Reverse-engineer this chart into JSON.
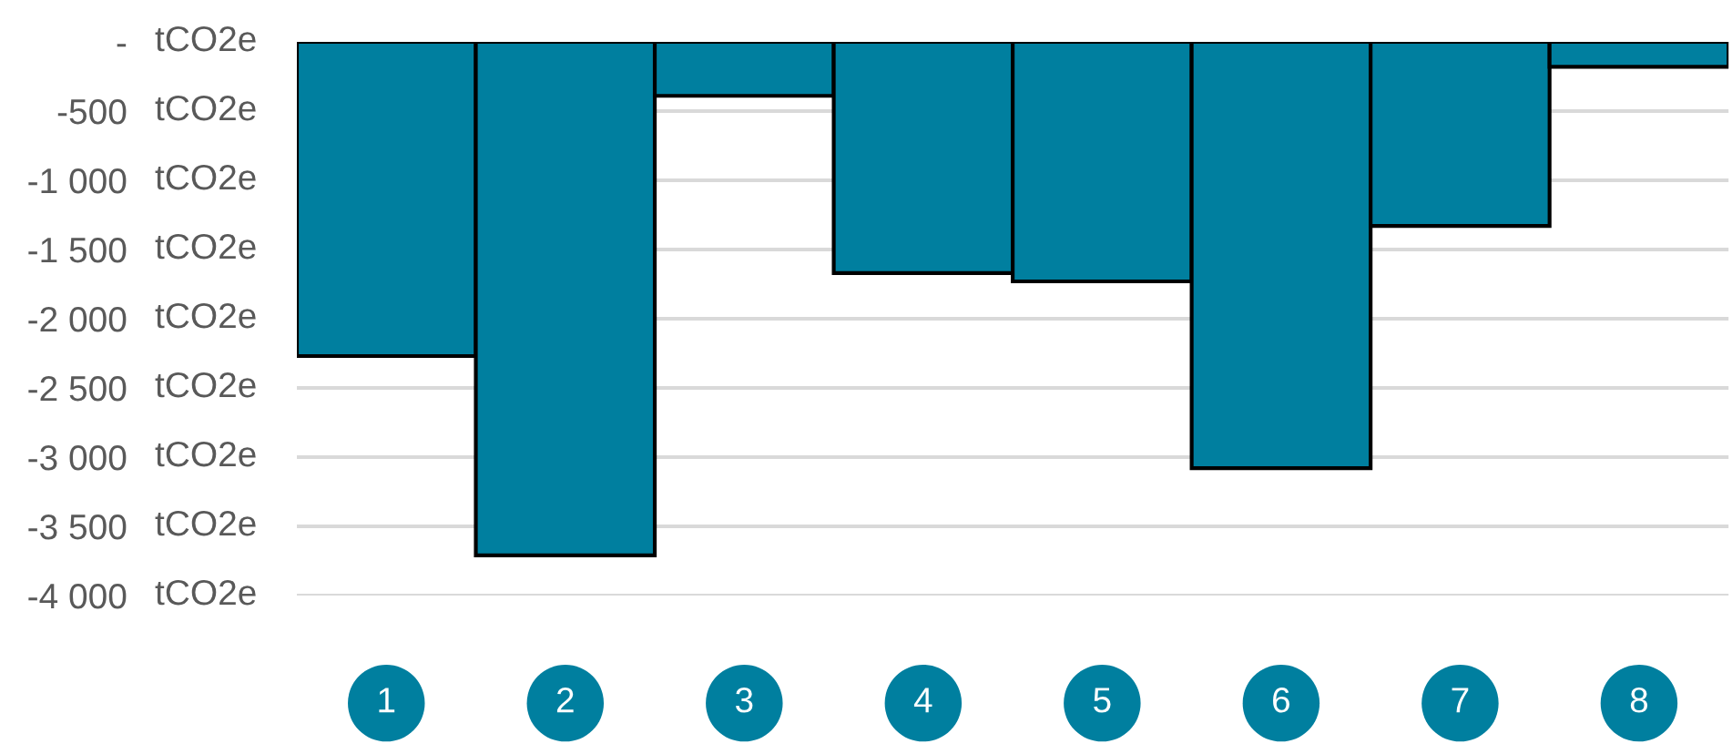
{
  "chart_data": {
    "type": "bar",
    "categories": [
      "1",
      "2",
      "3",
      "4",
      "5",
      "6",
      "7",
      "8"
    ],
    "values": [
      -2270,
      -3710,
      -390,
      -1670,
      -1730,
      -3080,
      -1330,
      -180
    ],
    "color": "#007f9f",
    "ylabel": "tCO2e",
    "ylim": [
      -4000,
      0
    ],
    "yticks": [
      {
        "value": 0,
        "label": "-"
      },
      -500,
      {
        "value": -1000,
        "label": "-1 000"
      },
      {
        "value": -1500,
        "label": "-1 500"
      },
      {
        "value": -2000,
        "label": "-2 000"
      },
      {
        "value": -2500,
        "label": "-2 500"
      },
      {
        "value": -3000,
        "label": "-3 000"
      },
      {
        "value": -3500,
        "label": "-3 500"
      },
      {
        "value": -4000,
        "label": "-4 000"
      }
    ],
    "grid": "y"
  }
}
